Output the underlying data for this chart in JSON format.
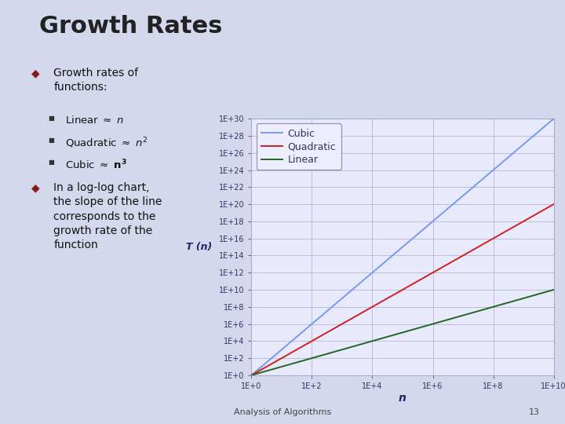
{
  "title": "Growth Rates",
  "xlabel": "n",
  "ylabel": "T (n)",
  "x_range": [
    1,
    10000000000.0
  ],
  "y_range": [
    1,
    1e+30
  ],
  "lines": [
    {
      "label": "Cubic",
      "color": "#7799EE",
      "power": 3
    },
    {
      "label": "Quadratic",
      "color": "#CC2222",
      "power": 2
    },
    {
      "label": "Linear",
      "color": "#226622",
      "power": 1
    }
  ],
  "x_ticks": [
    1,
    100,
    10000,
    1000000,
    100000000,
    10000000000
  ],
  "x_tick_labels": [
    "1E+0",
    "1E+2",
    "1E+4",
    "1E+6",
    "1E+8",
    "1E+10"
  ],
  "y_ticks": [
    1.0,
    100.0,
    10000.0,
    1000000.0,
    100000000.0,
    10000000000.0,
    1000000000000.0,
    100000000000000.0,
    1e+16,
    1e+18,
    1e+20,
    1e+22,
    1e+24,
    1e+26,
    1e+28,
    1e+30
  ],
  "y_tick_labels": [
    "1E+0",
    "1E+2",
    "1E+4",
    "1E+6",
    "1E+8",
    "1E+10",
    "1E+12",
    "1E+14",
    "1E+16",
    "1E+18",
    "1E+20",
    "1E+22",
    "1E+24",
    "1E+26",
    "1E+28",
    "1E+30"
  ],
  "slide_bg": "#D4D8EC",
  "plot_bg_color": "#E8EAFC",
  "grid_color": "#AAAACC",
  "tick_color": "#333366",
  "axis_label_color": "#222266",
  "title_color": "#222222",
  "legend_font_size": 9,
  "tick_fontsize": 7,
  "footer_text": "Analysis of Algorithms",
  "footer_num": "13"
}
